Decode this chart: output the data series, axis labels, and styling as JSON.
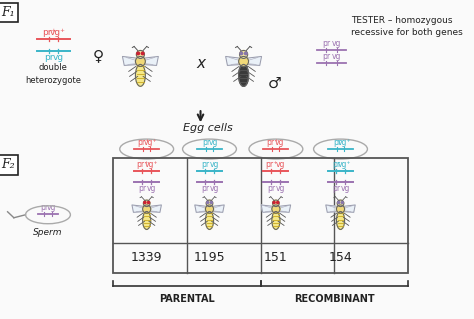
{
  "bg_color": "#fafafa",
  "f1_label": "F₁",
  "f2_label": "F₂",
  "double_het_label": "double\nheterozygote",
  "tester_label": "TESTER – homozygous\nrecessive for both genes",
  "egg_cells_label": "Egg cells",
  "sperm_label": "Sperm",
  "cross_symbol": "x",
  "parental_label": "PARENTAL",
  "recombinant_label": "RECOMBINANT",
  "counts": [
    "1339",
    "1195",
    "151",
    "154"
  ],
  "pink": "#e8555a",
  "blue": "#3ab5c8",
  "purple": "#9b72b0",
  "dark": "#222222",
  "gray": "#888888",
  "female_symbol": "♀",
  "male_symbol": "♂",
  "egg_top_labels": [
    [
      "pr⁺",
      "vg⁺"
    ],
    [
      "pr",
      "vg"
    ],
    [
      "pr⁺",
      "vg"
    ],
    [
      "pr",
      "vg⁺"
    ]
  ],
  "egg_top_colors": [
    "#e8555a",
    "#3ab5c8",
    "#e8555a",
    "#3ab5c8"
  ],
  "cell_top_labels": [
    [
      "pr⁺",
      "vg⁺"
    ],
    [
      "pr",
      "vg"
    ],
    [
      "pr⁺",
      "vg"
    ],
    [
      "pr",
      "vg⁺"
    ]
  ],
  "cell_top_colors": [
    "#e8555a",
    "#3ab5c8",
    "#e8555a",
    "#3ab5c8"
  ],
  "cell_bot_labels": [
    [
      "pr",
      "vg"
    ],
    [
      "pr",
      "vg"
    ],
    [
      "pr",
      "vg"
    ],
    [
      "pr",
      "vg"
    ]
  ],
  "f1_female_top": [
    "pr⁺",
    "vg⁺"
  ],
  "f1_female_bot": [
    "pr",
    "vg"
  ],
  "f1_male_rows": [
    [
      "pr",
      "vg"
    ],
    [
      "pr",
      "vg"
    ]
  ]
}
